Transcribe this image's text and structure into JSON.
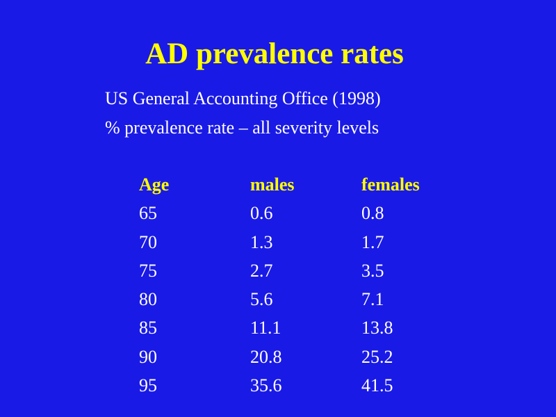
{
  "title": "AD prevalence rates",
  "subtitle_lines": [
    "US General Accounting Office (1998)",
    "% prevalence rate – all severity levels"
  ],
  "colors": {
    "background": "#1a1ae6",
    "title": "#ffff00",
    "header": "#ffff00",
    "text": "#ffffff"
  },
  "table": {
    "headers": [
      "Age",
      "males",
      "females"
    ],
    "rows": [
      [
        "65",
        "0.6",
        "0.8"
      ],
      [
        "70",
        "1.3",
        "1.7"
      ],
      [
        "75",
        "2.7",
        "3.5"
      ],
      [
        "80",
        "5.6",
        "7.1"
      ],
      [
        "85",
        "11.1",
        "13.8"
      ],
      [
        "90",
        "20.8",
        "25.2"
      ],
      [
        "95",
        "35.6",
        "41.5"
      ]
    ]
  },
  "chart_data": {
    "type": "table",
    "title": "AD prevalence rates",
    "columns": [
      "Age",
      "males",
      "females"
    ],
    "rows": [
      [
        65,
        0.6,
        0.8
      ],
      [
        70,
        1.3,
        1.7
      ],
      [
        75,
        2.7,
        3.5
      ],
      [
        80,
        5.6,
        7.1
      ],
      [
        85,
        11.1,
        13.8
      ],
      [
        90,
        20.8,
        25.2
      ],
      [
        95,
        35.6,
        41.5
      ]
    ]
  }
}
